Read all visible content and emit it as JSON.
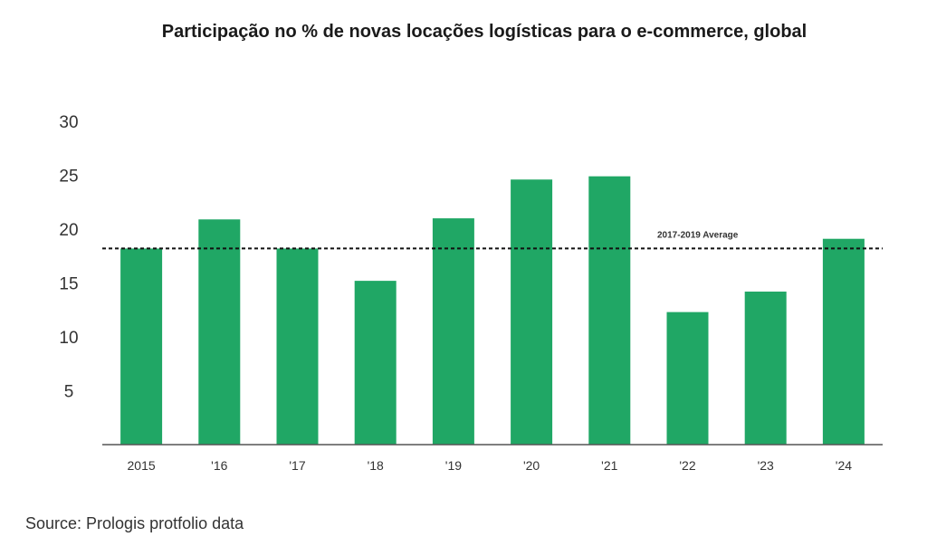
{
  "chart_data": {
    "type": "bar",
    "title": "Participação no % de novas locações logísticas para o e-commerce, global",
    "categories": [
      "2015",
      "'16",
      "'17",
      "'18",
      "'19",
      "'20",
      "'21",
      "'22",
      "'23",
      "'24"
    ],
    "values": [
      18.2,
      20.9,
      18.2,
      15.2,
      21.0,
      24.6,
      24.9,
      12.3,
      14.2,
      19.1
    ],
    "ylim": [
      0,
      30
    ],
    "yticks": [
      5,
      10,
      15,
      20,
      25,
      30
    ],
    "grid": false,
    "bar_color": "#20a765",
    "reference_line": {
      "label": "2017-2019 Average",
      "value": 18.2,
      "style": "dashed"
    },
    "source": "Source: Prologis protfolio data"
  }
}
